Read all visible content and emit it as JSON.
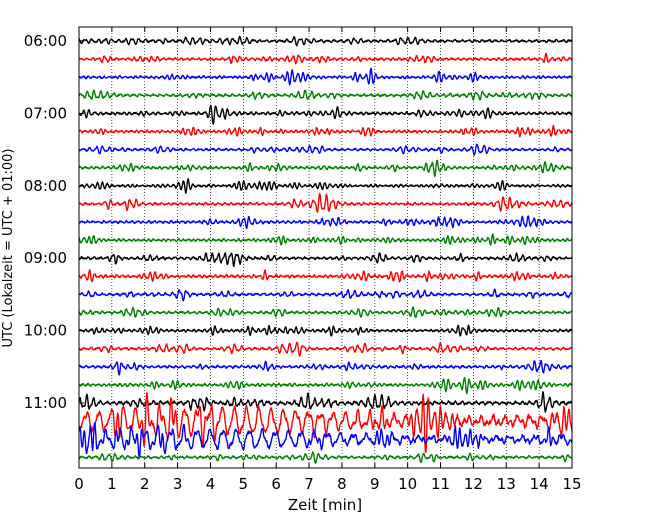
{
  "chart_data": {
    "type": "line",
    "title": "",
    "xlabel": "Zeit  [min]",
    "ylabel": "UTC (Lokalzeit = UTC + 01:00)",
    "xlim": [
      0,
      15
    ],
    "x_ticks": [
      "0",
      "1",
      "2",
      "3",
      "4",
      "5",
      "6",
      "7",
      "8",
      "9",
      "10",
      "11",
      "12",
      "13",
      "14",
      "15"
    ],
    "y_ticks": [
      "06:00",
      "07:00",
      "08:00",
      "09:00",
      "10:00",
      "11:00"
    ],
    "grid": "vertical dotted lines at each minute",
    "legend": "none",
    "trace_interval_min": 15,
    "trace_start": "06:00",
    "color_cycle": [
      "#000000",
      "#ff0000",
      "#0000ff",
      "#008000"
    ],
    "series": [
      {
        "start": "06:00",
        "color": "#000000",
        "amplitude": 1.0
      },
      {
        "start": "06:15",
        "color": "#ff0000",
        "amplitude": 1.0
      },
      {
        "start": "06:30",
        "color": "#0000ff",
        "amplitude": 1.0
      },
      {
        "start": "06:45",
        "color": "#008000",
        "amplitude": 1.0
      },
      {
        "start": "07:00",
        "color": "#000000",
        "amplitude": 1.1
      },
      {
        "start": "07:15",
        "color": "#ff0000",
        "amplitude": 1.0
      },
      {
        "start": "07:30",
        "color": "#0000ff",
        "amplitude": 0.9
      },
      {
        "start": "07:45",
        "color": "#008000",
        "amplitude": 1.0
      },
      {
        "start": "08:00",
        "color": "#000000",
        "amplitude": 1.0
      },
      {
        "start": "08:15",
        "color": "#ff0000",
        "amplitude": 1.0
      },
      {
        "start": "08:30",
        "color": "#0000ff",
        "amplitude": 1.0
      },
      {
        "start": "08:45",
        "color": "#008000",
        "amplitude": 1.0
      },
      {
        "start": "09:00",
        "color": "#000000",
        "amplitude": 1.0
      },
      {
        "start": "09:15",
        "color": "#ff0000",
        "amplitude": 1.1
      },
      {
        "start": "09:30",
        "color": "#0000ff",
        "amplitude": 1.0
      },
      {
        "start": "09:45",
        "color": "#008000",
        "amplitude": 1.0
      },
      {
        "start": "10:00",
        "color": "#000000",
        "amplitude": 1.0
      },
      {
        "start": "10:15",
        "color": "#ff0000",
        "amplitude": 1.0
      },
      {
        "start": "10:30",
        "color": "#0000ff",
        "amplitude": 1.0
      },
      {
        "start": "10:45",
        "color": "#008000",
        "amplitude": 1.1
      },
      {
        "start": "11:00",
        "color": "#000000",
        "amplitude": 1.4
      },
      {
        "start": "11:15",
        "color": "#ff0000",
        "amplitude": 3.2
      },
      {
        "start": "11:30",
        "color": "#0000ff",
        "amplitude": 2.2
      },
      {
        "start": "11:45",
        "color": "#008000",
        "amplitude": 1.0
      }
    ]
  }
}
